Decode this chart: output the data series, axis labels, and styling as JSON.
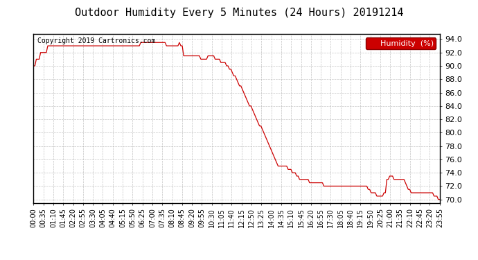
{
  "title": "Outdoor Humidity Every 5 Minutes (24 Hours) 20191214",
  "copyright": "Copyright 2019 Cartronics.com",
  "legend_label": "Humidity  (%)",
  "bg_color": "#ffffff",
  "line_color": "#cc0000",
  "legend_bg": "#cc0000",
  "legend_text_color": "#ffffff",
  "ylim": [
    69.5,
    94.8
  ],
  "yticks": [
    70.0,
    72.0,
    74.0,
    76.0,
    78.0,
    80.0,
    82.0,
    84.0,
    86.0,
    88.0,
    90.0,
    92.0,
    94.0
  ],
  "humidity_values": [
    90.0,
    90.0,
    91.0,
    91.0,
    91.0,
    92.0,
    92.0,
    92.0,
    92.0,
    92.0,
    93.0,
    93.0,
    93.0,
    93.0,
    93.0,
    93.0,
    93.0,
    93.0,
    93.0,
    93.0,
    93.0,
    93.0,
    93.0,
    93.0,
    93.0,
    93.0,
    93.0,
    93.0,
    93.0,
    93.0,
    93.0,
    93.0,
    93.0,
    93.0,
    93.0,
    93.0,
    93.0,
    93.0,
    93.0,
    93.0,
    93.0,
    93.0,
    93.0,
    93.0,
    93.0,
    93.0,
    93.0,
    93.0,
    93.0,
    93.0,
    93.0,
    93.0,
    93.0,
    93.0,
    93.0,
    93.0,
    93.0,
    93.0,
    93.0,
    93.0,
    93.0,
    93.0,
    93.0,
    93.0,
    93.0,
    93.0,
    93.0,
    93.0,
    93.0,
    93.0,
    93.0,
    93.0,
    93.0,
    93.0,
    93.0,
    93.5,
    93.5,
    93.5,
    93.5,
    93.5,
    93.5,
    93.5,
    93.5,
    93.5,
    93.5,
    93.5,
    93.5,
    93.5,
    93.5,
    93.5,
    93.5,
    93.5,
    93.5,
    93.0,
    93.0,
    93.0,
    93.0,
    93.0,
    93.0,
    93.0,
    93.0,
    93.0,
    93.5,
    93.0,
    93.0,
    91.5,
    91.5,
    91.5,
    91.5,
    91.5,
    91.5,
    91.5,
    91.5,
    91.5,
    91.5,
    91.5,
    91.5,
    91.0,
    91.0,
    91.0,
    91.0,
    91.0,
    91.5,
    91.5,
    91.5,
    91.5,
    91.5,
    91.0,
    91.0,
    91.0,
    91.0,
    90.5,
    90.5,
    90.5,
    90.5,
    90.0,
    90.0,
    89.5,
    89.5,
    89.0,
    88.5,
    88.5,
    88.0,
    87.5,
    87.0,
    87.0,
    86.5,
    86.0,
    85.5,
    85.0,
    84.5,
    84.0,
    84.0,
    83.5,
    83.0,
    82.5,
    82.0,
    81.5,
    81.0,
    81.0,
    80.5,
    80.0,
    79.5,
    79.0,
    78.5,
    78.0,
    77.5,
    77.0,
    76.5,
    76.0,
    75.5,
    75.0,
    75.0,
    75.0,
    75.0,
    75.0,
    75.0,
    75.0,
    74.5,
    74.5,
    74.5,
    74.0,
    74.0,
    74.0,
    73.5,
    73.5,
    73.0,
    73.0,
    73.0,
    73.0,
    73.0,
    73.0,
    73.0,
    72.5,
    72.5,
    72.5,
    72.5,
    72.5,
    72.5,
    72.5,
    72.5,
    72.5,
    72.5,
    72.0,
    72.0,
    72.0,
    72.0,
    72.0,
    72.0,
    72.0,
    72.0,
    72.0,
    72.0,
    72.0,
    72.0,
    72.0,
    72.0,
    72.0,
    72.0,
    72.0,
    72.0,
    72.0,
    72.0,
    72.0,
    72.0,
    72.0,
    72.0,
    72.0,
    72.0,
    72.0,
    72.0,
    72.0,
    72.0,
    72.0,
    71.5,
    71.5,
    71.0,
    71.0,
    71.0,
    71.0,
    70.5,
    70.5,
    70.5,
    70.5,
    70.5,
    71.0,
    71.0,
    73.0,
    73.0,
    73.5,
    73.5,
    73.5,
    73.0,
    73.0,
    73.0,
    73.0,
    73.0,
    73.0,
    73.0,
    73.0,
    72.5,
    72.0,
    71.5,
    71.5,
    71.0,
    71.0,
    71.0,
    71.0,
    71.0,
    71.0,
    71.0,
    71.0,
    71.0,
    71.0,
    71.0,
    71.0,
    71.0,
    71.0,
    71.0,
    71.0,
    70.5,
    70.5,
    70.5,
    70.0,
    70.0
  ],
  "x_tick_labels": [
    "00:00",
    "00:35",
    "01:10",
    "01:45",
    "02:20",
    "02:55",
    "03:30",
    "04:05",
    "04:40",
    "05:15",
    "05:50",
    "06:25",
    "07:00",
    "07:35",
    "08:10",
    "08:45",
    "09:20",
    "09:55",
    "10:30",
    "11:05",
    "11:40",
    "12:15",
    "12:50",
    "13:25",
    "14:00",
    "14:35",
    "15:10",
    "15:45",
    "16:20",
    "16:55",
    "17:30",
    "18:05",
    "18:40",
    "19:15",
    "19:50",
    "20:25",
    "21:00",
    "21:35",
    "22:10",
    "22:45",
    "23:20",
    "23:55"
  ],
  "title_fontsize": 11,
  "copyright_fontsize": 7,
  "ytick_fontsize": 8,
  "xtick_fontsize": 7,
  "legend_fontsize": 8
}
